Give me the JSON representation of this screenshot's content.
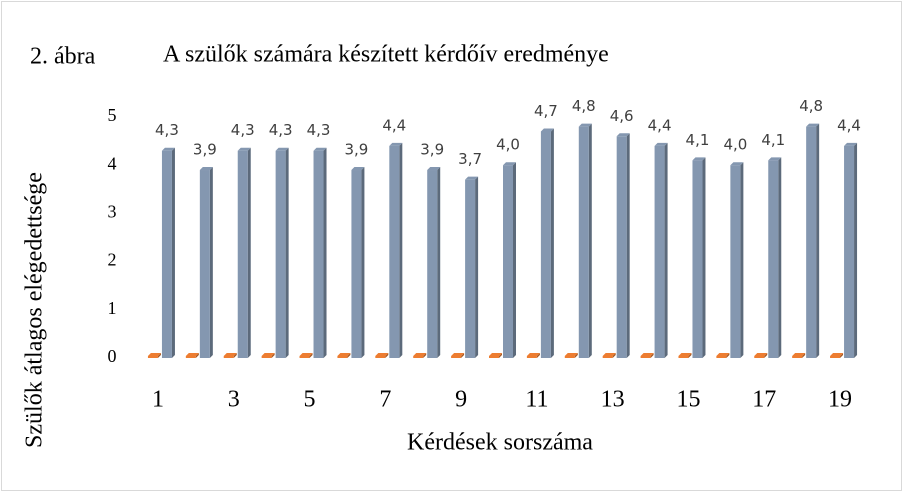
{
  "chart_data": {
    "type": "bar",
    "annotation": "2. ábra",
    "title": "A szülők számára készített kérdőív eredménye",
    "ylabel": "Szülők átlagos elégedettsége",
    "xlabel": "Kérdések sorszáma",
    "categories": [
      1,
      null,
      3,
      null,
      5,
      null,
      7,
      null,
      9,
      null,
      11,
      null,
      13,
      null,
      15,
      null,
      17,
      null,
      19
    ],
    "series": [
      {
        "color": "#ed7d31",
        "values": [
          0,
          0,
          0,
          0,
          0,
          0,
          0,
          0,
          0,
          0,
          0,
          0,
          0,
          0,
          0,
          0,
          0,
          0,
          0
        ]
      },
      {
        "color": "#8497b0",
        "values": [
          4.3,
          3.9,
          4.3,
          4.3,
          4.3,
          3.9,
          4.4,
          3.9,
          3.7,
          4.0,
          4.7,
          4.8,
          4.6,
          4.4,
          4.1,
          4.0,
          4.1,
          4.8,
          4.4
        ],
        "value_labels": [
          "4,3",
          "3,9",
          "4,3",
          "4,3",
          "4,3",
          "3,9",
          "4,4",
          "3,9",
          "3,7",
          "4,0",
          "4,7",
          "4,8",
          "4,6",
          "4,4",
          "4,1",
          "4,0",
          "4,1",
          "4,8",
          "4,4"
        ]
      }
    ],
    "ylim": [
      0,
      5
    ],
    "yticks": [
      0,
      1,
      2,
      3,
      4,
      5
    ],
    "grid": false
  }
}
